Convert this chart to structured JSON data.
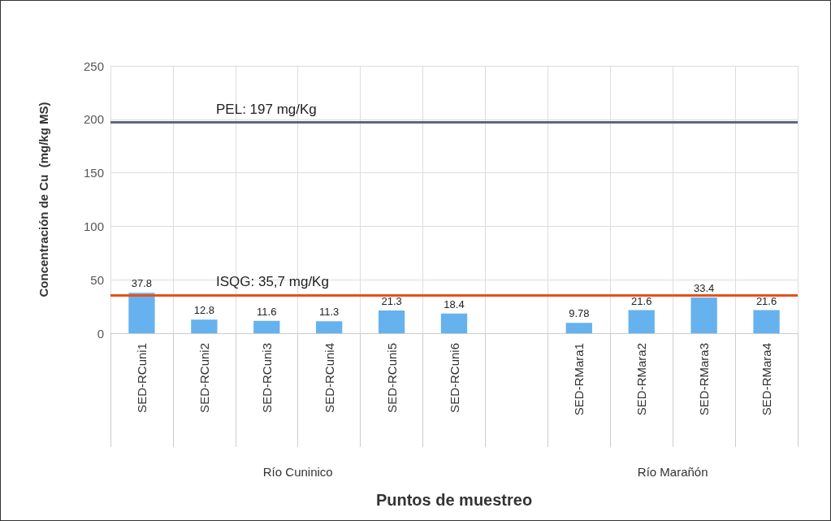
{
  "chart_data": {
    "type": "bar",
    "xlabel": "Puntos de muestreo",
    "ylabel": "Concentración de Cu  (mg/kg MS)",
    "categories": [
      "SED-RCuni1",
      "SED-RCuni2",
      "SED-RCuni3",
      "SED-RCuni4",
      "SED-RCuni5",
      "SED-RCuni6",
      null,
      "SED-RMara1",
      "SED-RMara2",
      "SED-RMara3",
      "SED-RMara4"
    ],
    "values": [
      37.8,
      12.8,
      11.6,
      11.3,
      21.3,
      18.4,
      null,
      9.78,
      21.6,
      33.4,
      21.6
    ],
    "color": "#66b2ee",
    "ylim": [
      0,
      250
    ],
    "yticks": [
      0,
      50,
      100,
      150,
      200,
      250
    ],
    "ref_lines": [
      {
        "axis": "y",
        "value": 197,
        "label": "PEL: 197 mg/Kg",
        "color": "#5f6878"
      },
      {
        "axis": "y",
        "value": 35.7,
        "label": "ISQG: 35,7 mg/Kg",
        "color": "#e8501c"
      }
    ],
    "annotations": [
      "Río Cuninico",
      "Río Marañón"
    ],
    "data_labels": true,
    "grid": true
  }
}
